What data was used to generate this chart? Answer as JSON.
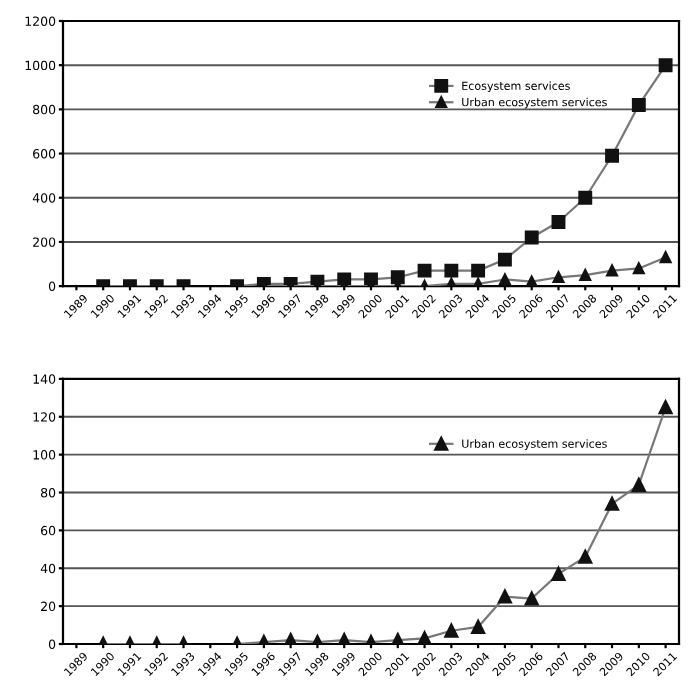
{
  "chart_data": [
    {
      "type": "line",
      "categories": [
        "1989",
        "1990",
        "1991",
        "1992",
        "1993",
        "1994",
        "1995",
        "1996",
        "1997",
        "1998",
        "1999",
        "2000",
        "2001",
        "2002",
        "2003",
        "2004",
        "2005",
        "2006",
        "2007",
        "2008",
        "2009",
        "2010",
        "2011"
      ],
      "series": [
        {
          "name": "Ecosystem services",
          "color": "#111111",
          "marker": "square",
          "values": [
            null,
            0,
            0,
            0,
            0,
            null,
            0,
            10,
            10,
            20,
            30,
            30,
            40,
            70,
            70,
            70,
            120,
            220,
            290,
            400,
            590,
            820,
            1000
          ]
        },
        {
          "name": "Urban ecosystem services",
          "color": "#111111",
          "marker": "triangle",
          "values": [
            null,
            null,
            null,
            null,
            null,
            null,
            null,
            0,
            0,
            0,
            0,
            0,
            0,
            0,
            10,
            10,
            30,
            20,
            40,
            50,
            70,
            80,
            130
          ]
        }
      ],
      "ylim": [
        0,
        1200
      ],
      "yticks": [
        0,
        200,
        400,
        600,
        800,
        1000,
        1200
      ],
      "grid": "y",
      "legend": "top right"
    },
    {
      "type": "line",
      "categories": [
        "1989",
        "1990",
        "1991",
        "1992",
        "1993",
        "1994",
        "1995",
        "1996",
        "1997",
        "1998",
        "1999",
        "2000",
        "2001",
        "2002",
        "2003",
        "2004",
        "2005",
        "2006",
        "2007",
        "2008",
        "2009",
        "2010",
        "2011"
      ],
      "series": [
        {
          "name": "Urban ecosystem services",
          "color": "#111111",
          "marker": "triangle",
          "values": [
            null,
            0,
            0,
            0,
            0,
            null,
            0,
            1,
            2,
            1,
            2,
            1,
            2,
            3,
            7,
            9,
            25,
            24,
            37,
            46,
            74,
            84,
            125
          ]
        }
      ],
      "ylim": [
        0,
        140
      ],
      "yticks": [
        0,
        20,
        40,
        60,
        80,
        100,
        120,
        140
      ],
      "grid": "y",
      "legend": "top right"
    }
  ]
}
